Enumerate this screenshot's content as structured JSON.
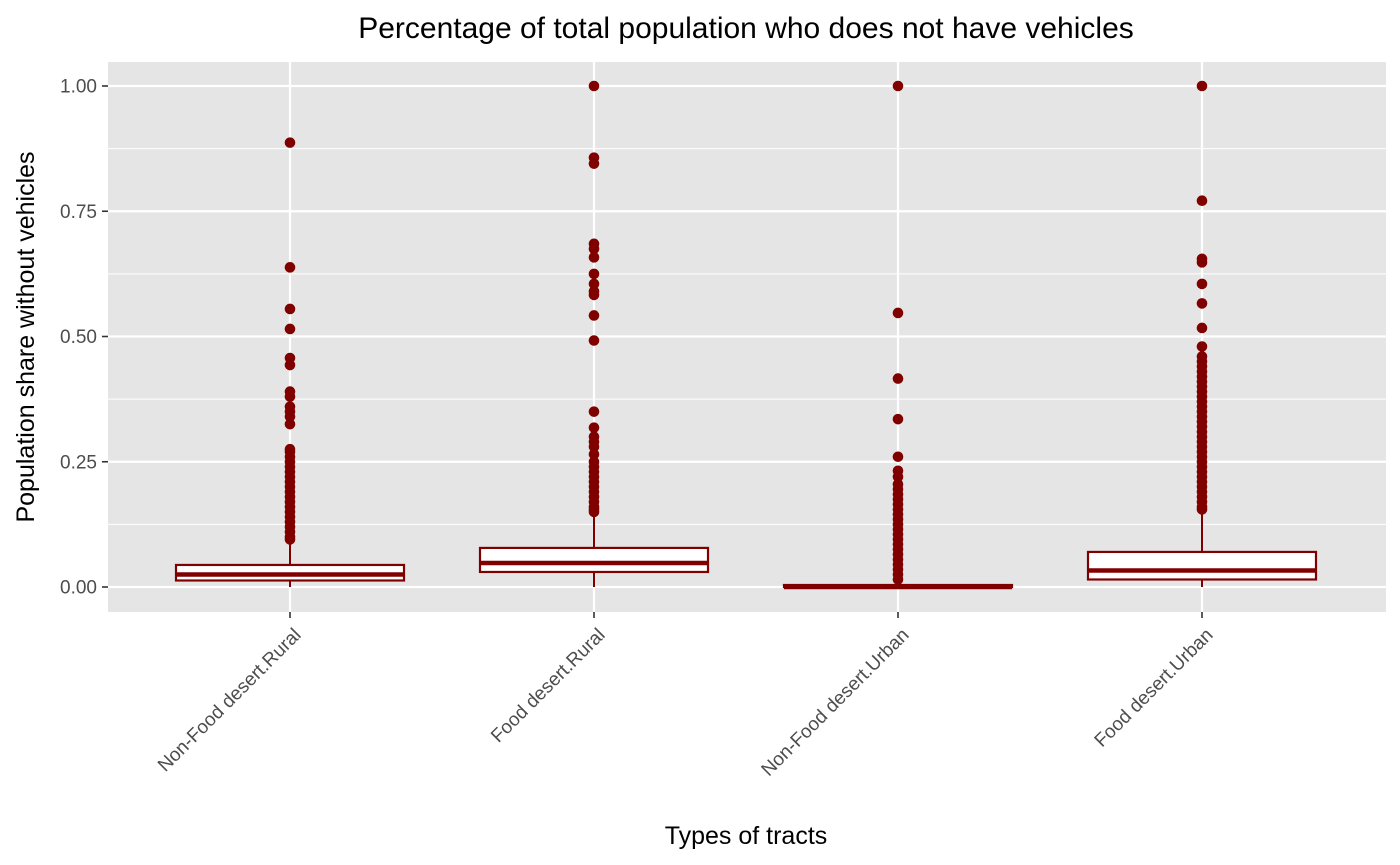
{
  "chart_data": {
    "type": "boxplot",
    "title": "Percentage of total population who does not have vehicles",
    "xlabel": "Types of tracts",
    "ylabel": "Population share without vehicles",
    "ylim": [
      -0.05,
      1.05
    ],
    "yticks": [
      0.0,
      0.25,
      0.5,
      0.75,
      1.0
    ],
    "ytick_labels": [
      "0.00",
      "0.25",
      "0.50",
      "0.75",
      "1.00"
    ],
    "grid": true,
    "colors": {
      "panel": "#e5e5e5",
      "grid": "#ffffff",
      "series": "#800000",
      "box_fill": "#ffffff"
    },
    "categories": [
      "Non-Food desert.Rural",
      "Food desert.Rural",
      "Non-Food desert.Urban",
      "Food desert.Urban"
    ],
    "boxes": [
      {
        "category": "Non-Food desert.Rural",
        "whisker_low": 0.0,
        "q1": 0.013,
        "median": 0.025,
        "q3": 0.044,
        "whisker_high": 0.09,
        "outliers": [
          0.887,
          0.638,
          0.555,
          0.515,
          0.457,
          0.443,
          0.39,
          0.38,
          0.36,
          0.35,
          0.34,
          0.325,
          0.275,
          0.27,
          0.26,
          0.25,
          0.24,
          0.23,
          0.22,
          0.21,
          0.2,
          0.19,
          0.18,
          0.17,
          0.16,
          0.15,
          0.14,
          0.13,
          0.12,
          0.11,
          0.1,
          0.095
        ]
      },
      {
        "category": "Food desert.Rural",
        "whisker_low": 0.0,
        "q1": 0.03,
        "median": 0.048,
        "q3": 0.078,
        "whisker_high": 0.148,
        "outliers": [
          1.0,
          0.857,
          0.845,
          0.685,
          0.675,
          0.658,
          0.625,
          0.605,
          0.59,
          0.583,
          0.542,
          0.492,
          0.35,
          0.318,
          0.3,
          0.29,
          0.28,
          0.265,
          0.25,
          0.24,
          0.23,
          0.22,
          0.21,
          0.2,
          0.19,
          0.18,
          0.17,
          0.16,
          0.155,
          0.15
        ]
      },
      {
        "category": "Non-Food desert.Urban",
        "whisker_low": 0.0,
        "q1": 0.0,
        "median": 0.0,
        "q3": 0.004,
        "whisker_high": 0.01,
        "outliers": [
          1.0,
          0.547,
          0.416,
          0.335,
          0.26,
          0.232,
          0.22,
          0.205,
          0.195,
          0.185,
          0.175,
          0.165,
          0.155,
          0.145,
          0.135,
          0.125,
          0.115,
          0.105,
          0.095,
          0.085,
          0.075,
          0.065,
          0.055,
          0.045,
          0.035,
          0.025,
          0.015
        ]
      },
      {
        "category": "Food desert.Urban",
        "whisker_low": 0.0,
        "q1": 0.015,
        "median": 0.033,
        "q3": 0.07,
        "whisker_high": 0.152,
        "outliers": [
          1.0,
          0.771,
          0.655,
          0.648,
          0.605,
          0.566,
          0.517,
          0.48,
          0.46,
          0.45,
          0.44,
          0.43,
          0.42,
          0.41,
          0.4,
          0.39,
          0.38,
          0.37,
          0.36,
          0.35,
          0.34,
          0.33,
          0.32,
          0.31,
          0.3,
          0.29,
          0.28,
          0.27,
          0.26,
          0.25,
          0.24,
          0.23,
          0.22,
          0.21,
          0.2,
          0.19,
          0.18,
          0.17,
          0.16,
          0.155
        ]
      }
    ]
  }
}
